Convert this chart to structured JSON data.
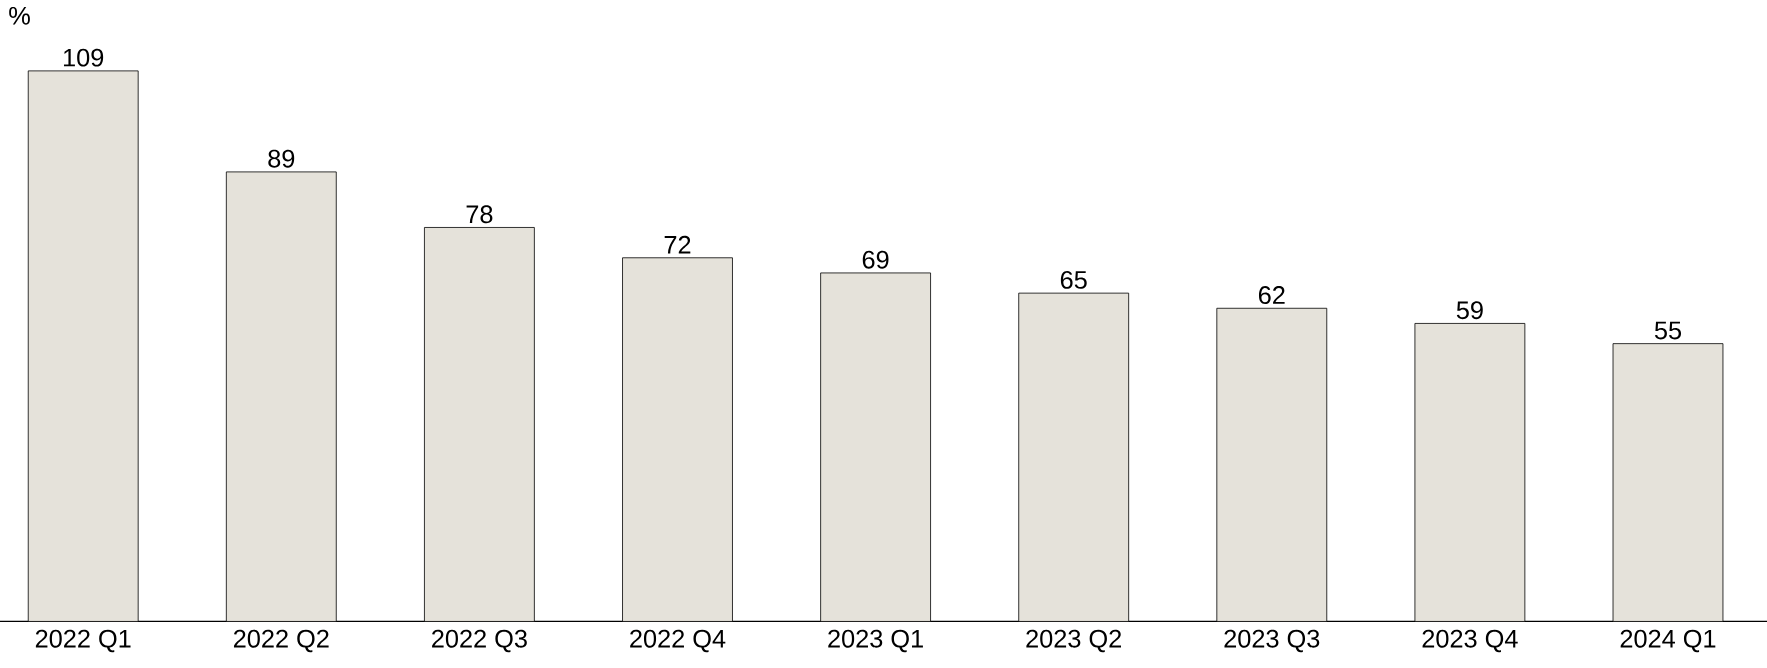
{
  "chart_data": {
    "type": "bar",
    "ylabel": "%",
    "categories": [
      "2022 Q1",
      "2022 Q2",
      "2022 Q3",
      "2022 Q4",
      "2023 Q1",
      "2023 Q2",
      "2023 Q3",
      "2023 Q4",
      "2024 Q1"
    ],
    "values": [
      109,
      89,
      78,
      72,
      69,
      65,
      62,
      59,
      55
    ],
    "color": "#e5e2da",
    "data_labels": true
  }
}
